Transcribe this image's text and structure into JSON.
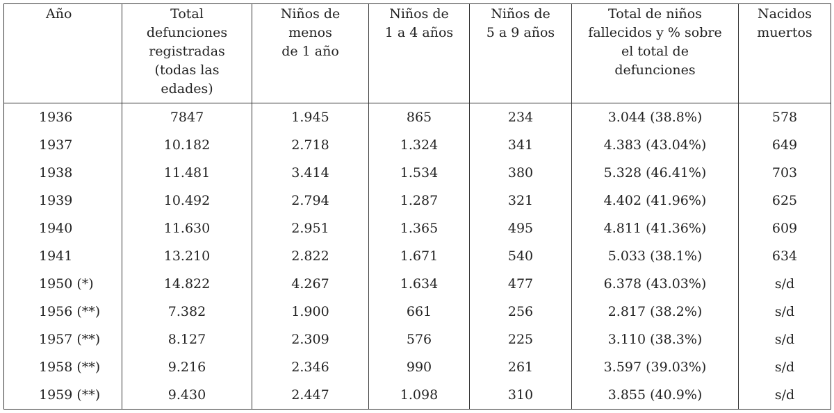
{
  "table": {
    "headers": [
      [
        "Año"
      ],
      [
        "Total",
        "defunciones",
        "registradas",
        "(todas las",
        "edades)"
      ],
      [
        "Niños de",
        "menos",
        "de 1 año"
      ],
      [
        "Niños de",
        "1 a 4 años"
      ],
      [
        "Niños de",
        "5 a 9 años"
      ],
      [
        "Total de niños",
        "fallecidos y % sobre",
        "el total de",
        "defunciones"
      ],
      [
        "Nacidos",
        "muertos"
      ]
    ],
    "rows": [
      [
        "1936",
        "7847",
        "1.945",
        "865",
        "234",
        "3.044 (38.8%)",
        "578"
      ],
      [
        "1937",
        "10.182",
        "2.718",
        "1.324",
        "341",
        "4.383 (43.04%)",
        "649"
      ],
      [
        "1938",
        "11.481",
        "3.414",
        "1.534",
        "380",
        "5.328 (46.41%)",
        "703"
      ],
      [
        "1939",
        "10.492",
        "2.794",
        "1.287",
        "321",
        "4.402 (41.96%)",
        "625"
      ],
      [
        "1940",
        "11.630",
        "2.951",
        "1.365",
        "495",
        "4.811 (41.36%)",
        "609"
      ],
      [
        "1941",
        "13.210",
        "2.822",
        "1.671",
        "540",
        "5.033 (38.1%)",
        "634"
      ],
      [
        "1950 (*)",
        "14.822",
        "4.267",
        "1.634",
        "477",
        "6.378 (43.03%)",
        "s/d"
      ],
      [
        "1956 (**)",
        "7.382",
        "1.900",
        "661",
        "256",
        "2.817 (38.2%)",
        "s/d"
      ],
      [
        "1957 (**)",
        "8.127",
        "2.309",
        "576",
        "225",
        "3.110 (38.3%)",
        "s/d"
      ],
      [
        "1958 (**)",
        "9.216",
        "2.346",
        "990",
        "261",
        "3.597 (39.03%)",
        "s/d"
      ],
      [
        "1959 (**)",
        "9.430",
        "2.447",
        "1.098",
        "310",
        "3.855 (40.9%)",
        "s/d"
      ]
    ]
  }
}
